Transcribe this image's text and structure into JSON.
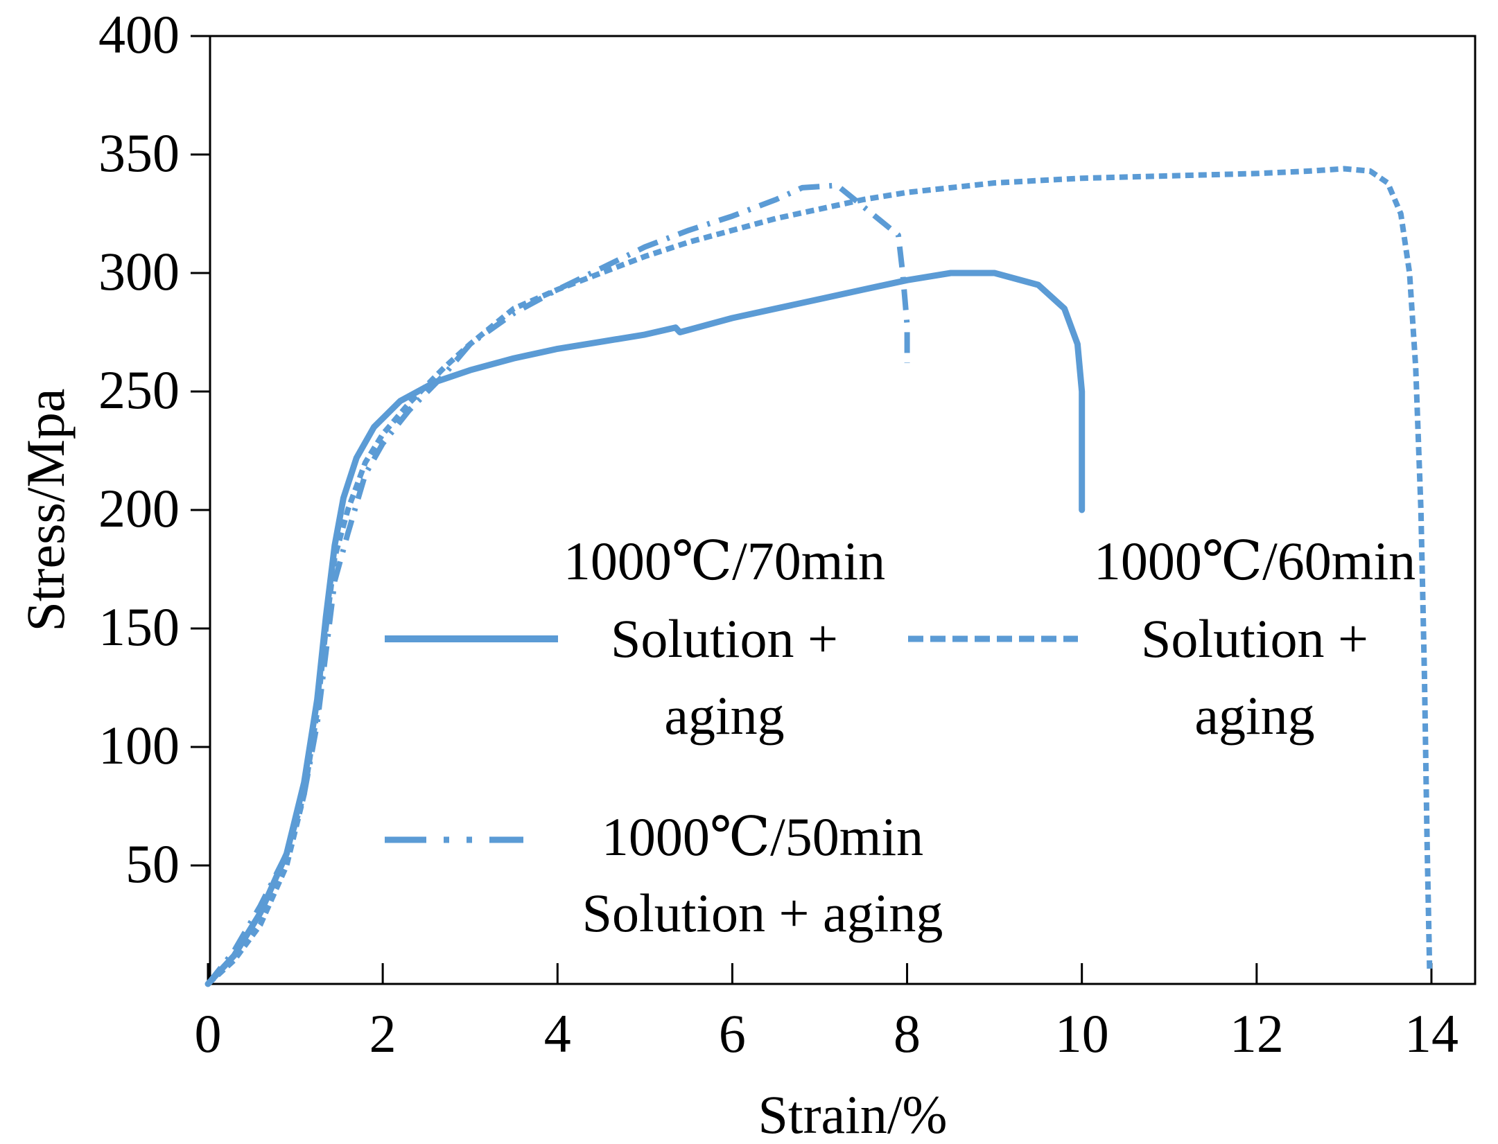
{
  "chart_data": {
    "type": "line",
    "title": "",
    "xlabel": "Strain/%",
    "ylabel": "Stress/Mpa",
    "xlim": [
      0,
      14.5
    ],
    "ylim": [
      0,
      400
    ],
    "xticks": [
      0,
      2,
      4,
      6,
      8,
      10,
      12,
      14
    ],
    "yticks": [
      50,
      100,
      150,
      200,
      250,
      300,
      350,
      400
    ],
    "grid": false,
    "color": "#5b9bd5",
    "series": [
      {
        "name": "1000℃/70min Solution + aging",
        "legend_lines": [
          "1000℃/70min",
          "Solution +",
          "aging"
        ],
        "style": "solid",
        "points": [
          [
            0,
            0
          ],
          [
            0.3,
            12
          ],
          [
            0.6,
            30
          ],
          [
            0.9,
            55
          ],
          [
            1.1,
            85
          ],
          [
            1.25,
            120
          ],
          [
            1.35,
            155
          ],
          [
            1.45,
            185
          ],
          [
            1.55,
            205
          ],
          [
            1.7,
            222
          ],
          [
            1.9,
            235
          ],
          [
            2.2,
            246
          ],
          [
            2.6,
            254
          ],
          [
            3.0,
            259
          ],
          [
            3.5,
            264
          ],
          [
            4.0,
            268
          ],
          [
            4.5,
            271
          ],
          [
            5.0,
            274
          ],
          [
            5.35,
            277
          ],
          [
            5.4,
            275
          ],
          [
            6.0,
            281
          ],
          [
            6.5,
            285
          ],
          [
            7.0,
            289
          ],
          [
            7.5,
            293
          ],
          [
            8.0,
            297
          ],
          [
            8.5,
            300
          ],
          [
            9.0,
            300
          ],
          [
            9.5,
            295
          ],
          [
            9.8,
            285
          ],
          [
            9.95,
            270
          ],
          [
            10.0,
            250
          ],
          [
            10.0,
            225
          ],
          [
            10.0,
            200
          ]
        ]
      },
      {
        "name": "1000℃/60min Solution + aging",
        "legend_lines": [
          "1000℃/60min",
          "Solution +",
          "aging"
        ],
        "style": "dotted",
        "points": [
          [
            0,
            0
          ],
          [
            0.3,
            10
          ],
          [
            0.6,
            25
          ],
          [
            0.9,
            50
          ],
          [
            1.1,
            80
          ],
          [
            1.25,
            115
          ],
          [
            1.35,
            150
          ],
          [
            1.45,
            180
          ],
          [
            1.6,
            200
          ],
          [
            1.8,
            220
          ],
          [
            2.0,
            232
          ],
          [
            2.3,
            245
          ],
          [
            2.7,
            260
          ],
          [
            3.0,
            270
          ],
          [
            3.5,
            285
          ],
          [
            4.0,
            293
          ],
          [
            4.5,
            300
          ],
          [
            5.0,
            307
          ],
          [
            5.5,
            313
          ],
          [
            6.0,
            318
          ],
          [
            6.5,
            323
          ],
          [
            7.0,
            327
          ],
          [
            7.5,
            331
          ],
          [
            8.0,
            334
          ],
          [
            8.5,
            336
          ],
          [
            9.0,
            338
          ],
          [
            10.0,
            340
          ],
          [
            11.0,
            341
          ],
          [
            12.0,
            342
          ],
          [
            12.6,
            343
          ],
          [
            13.0,
            344
          ],
          [
            13.3,
            343
          ],
          [
            13.5,
            338
          ],
          [
            13.65,
            325
          ],
          [
            13.75,
            300
          ],
          [
            13.82,
            260
          ],
          [
            13.88,
            200
          ],
          [
            13.92,
            130
          ],
          [
            13.95,
            60
          ],
          [
            13.98,
            5
          ]
        ]
      },
      {
        "name": "1000℃/50min Solution + aging",
        "legend_lines": [
          "1000℃/50min",
          "Solution + aging"
        ],
        "style": "dashdot",
        "points": [
          [
            0,
            0
          ],
          [
            0.3,
            14
          ],
          [
            0.6,
            33
          ],
          [
            0.9,
            55
          ],
          [
            1.1,
            80
          ],
          [
            1.25,
            110
          ],
          [
            1.35,
            140
          ],
          [
            1.45,
            170
          ],
          [
            1.6,
            190
          ],
          [
            1.8,
            215
          ],
          [
            2.0,
            228
          ],
          [
            2.3,
            242
          ],
          [
            2.7,
            257
          ],
          [
            3.0,
            270
          ],
          [
            3.5,
            283
          ],
          [
            4.0,
            293
          ],
          [
            4.5,
            302
          ],
          [
            5.0,
            311
          ],
          [
            5.5,
            318
          ],
          [
            6.0,
            324
          ],
          [
            6.5,
            331
          ],
          [
            6.8,
            336
          ],
          [
            7.2,
            337
          ],
          [
            7.9,
            316
          ],
          [
            7.95,
            300
          ],
          [
            8.0,
            278
          ],
          [
            8.0,
            262
          ]
        ]
      }
    ]
  }
}
